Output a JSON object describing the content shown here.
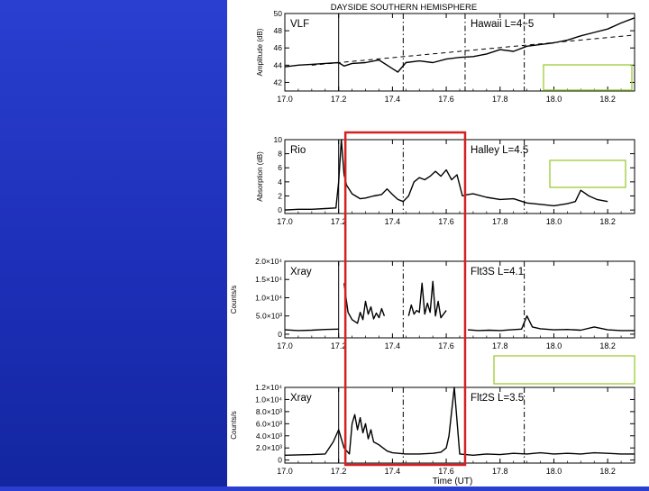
{
  "figure": {
    "title": "DAYSIDE SOUTHERN HEMISPHERE",
    "xaxis_title": "Time (UT)"
  },
  "highlight": {
    "color": "#d42020",
    "x_range": [
      17.225,
      17.67
    ],
    "panels": [
      1,
      3
    ]
  },
  "chart_data": [
    {
      "type": "line",
      "title": "DAYSIDE SOUTHERN HEMISPHERE",
      "left_label": "VLF",
      "right_label": "Hawaii L=4−5",
      "xlabel": "",
      "ylabel": "Amplitude (dB)",
      "xlim": [
        17.0,
        18.3
      ],
      "ylim": [
        41,
        50
      ],
      "xticks": [
        "17.0",
        "17.2",
        "17.4",
        "17.6",
        "17.8",
        "18.0",
        "18.2"
      ],
      "yticks": [
        "42",
        "44",
        "46",
        "48",
        "50"
      ],
      "ytick_values": [
        42,
        44,
        46,
        48,
        50
      ],
      "vlines": [
        17.2,
        17.44,
        17.67,
        17.89
      ],
      "vline_styles": [
        "solid",
        "dashdot",
        "dashdot",
        "dashdot"
      ],
      "reference_line": {
        "x": [
          17.1,
          18.3
        ],
        "y": [
          44.0,
          47.5
        ]
      },
      "x": [
        17.0,
        17.05,
        17.1,
        17.15,
        17.2,
        17.22,
        17.25,
        17.3,
        17.35,
        17.4,
        17.42,
        17.45,
        17.5,
        17.55,
        17.6,
        17.65,
        17.7,
        17.75,
        17.8,
        17.85,
        17.9,
        17.95,
        18.0,
        18.05,
        18.1,
        18.15,
        18.2,
        18.25,
        18.3
      ],
      "series": [
        {
          "values": [
            43.8,
            44.0,
            44.1,
            44.2,
            44.3,
            43.9,
            44.2,
            44.3,
            44.6,
            43.6,
            43.2,
            44.3,
            44.5,
            44.3,
            44.7,
            44.9,
            45.0,
            45.3,
            45.8,
            45.6,
            46.2,
            46.4,
            46.6,
            46.9,
            47.4,
            47.8,
            48.2,
            48.9,
            49.5
          ]
        }
      ]
    },
    {
      "type": "line",
      "left_label": "Rio",
      "right_label": "Halley L=4.5",
      "xlabel": "",
      "ylabel": "Absorption (dB)",
      "xlim": [
        17.0,
        18.3
      ],
      "ylim": [
        -0.5,
        10
      ],
      "xticks": [
        "17.0",
        "17.2",
        "17.4",
        "17.6",
        "17.8",
        "18.0",
        "18.2"
      ],
      "yticks": [
        "0",
        "2",
        "4",
        "6",
        "8",
        "10"
      ],
      "ytick_values": [
        0,
        2,
        4,
        6,
        8,
        10
      ],
      "vlines": [
        17.2,
        17.44,
        17.67,
        17.89
      ],
      "vline_styles": [
        "solid",
        "dashdot",
        "dashdot",
        "dashdot"
      ],
      "x": [
        17.0,
        17.05,
        17.1,
        17.15,
        17.19,
        17.2,
        17.21,
        17.22,
        17.23,
        17.25,
        17.28,
        17.3,
        17.33,
        17.36,
        17.38,
        17.4,
        17.42,
        17.44,
        17.46,
        17.48,
        17.5,
        17.52,
        17.54,
        17.56,
        17.58,
        17.6,
        17.62,
        17.64,
        17.66,
        17.68,
        17.7,
        17.75,
        17.8,
        17.85,
        17.9,
        17.95,
        18.0,
        18.05,
        18.08,
        18.1,
        18.13,
        18.16,
        18.2
      ],
      "series": [
        {
          "values": [
            0.0,
            0.1,
            0.1,
            0.2,
            0.3,
            4.0,
            10.0,
            5.0,
            3.5,
            2.3,
            1.6,
            1.7,
            2.0,
            2.2,
            3.0,
            2.2,
            1.5,
            1.2,
            2.0,
            4.0,
            4.6,
            4.3,
            4.8,
            5.5,
            4.8,
            5.7,
            4.3,
            5.0,
            2.0,
            2.2,
            2.3,
            1.8,
            1.5,
            1.6,
            1.0,
            0.8,
            0.6,
            0.9,
            1.2,
            2.8,
            2.0,
            1.5,
            1.2
          ]
        }
      ]
    },
    {
      "type": "line",
      "left_label": "Xray",
      "right_label": "Flt3S L=4.1",
      "xlabel": "",
      "ylabel": "Counts/s",
      "xlim": [
        17.0,
        18.3
      ],
      "ylim": [
        -1000,
        20000
      ],
      "xticks": [
        "17.0",
        "17.2",
        "17.4",
        "17.6",
        "17.8",
        "18.0",
        "18.2"
      ],
      "yticks": [
        "0",
        "5.0×10³",
        "1.0×10⁴",
        "1.5×10⁴",
        "2.0×10⁴"
      ],
      "ytick_values": [
        0,
        5000,
        10000,
        15000,
        20000
      ],
      "vlines": [
        17.2,
        17.44,
        17.67,
        17.89
      ],
      "vline_styles": [
        "solid",
        "dashdot",
        "dashdot",
        "dashdot"
      ],
      "segments": [
        {
          "x": [
            17.0,
            17.05,
            17.1,
            17.15,
            17.2
          ],
          "y": [
            1200,
            1000,
            1100,
            1300,
            1400
          ]
        },
        {
          "x": [
            17.22,
            17.235,
            17.25,
            17.27,
            17.28,
            17.29,
            17.3,
            17.31,
            17.32,
            17.33,
            17.34,
            17.35,
            17.36,
            17.37
          ],
          "y": [
            14000,
            6000,
            4000,
            3000,
            6000,
            4000,
            9000,
            5500,
            7500,
            4200,
            5800,
            4500,
            7000,
            5000
          ]
        },
        {
          "x": [
            17.46,
            17.47,
            17.48,
            17.49,
            17.5,
            17.51,
            17.52,
            17.53,
            17.54,
            17.55,
            17.56,
            17.57,
            17.58,
            17.6
          ],
          "y": [
            5000,
            8000,
            5500,
            6500,
            6000,
            14000,
            5500,
            8500,
            6000,
            14500,
            5000,
            9000,
            4500,
            6500
          ]
        },
        {
          "x": [
            17.68,
            17.72,
            17.76,
            17.8,
            17.84,
            17.88,
            17.9,
            17.92,
            17.95,
            18.0,
            18.05,
            18.1,
            18.15,
            18.2,
            18.25,
            18.3
          ],
          "y": [
            1200,
            1000,
            1100,
            1000,
            1200,
            1400,
            5000,
            2000,
            1500,
            1200,
            1300,
            1100,
            2000,
            1200,
            1000,
            1000
          ]
        }
      ]
    },
    {
      "type": "line",
      "left_label": "Xray",
      "right_label": "Flt2S L=3.5",
      "xlabel": "Time (UT)",
      "ylabel": "Counts/s",
      "xlim": [
        17.0,
        18.3
      ],
      "ylim": [
        -500,
        12000
      ],
      "xticks": [
        "17.0",
        "17.2",
        "17.4",
        "17.6",
        "17.8",
        "18.0",
        "18.2"
      ],
      "yticks": [
        "0",
        "2.0×10³",
        "4.0×10³",
        "6.0×10³",
        "8.0×10³",
        "1.0×10⁴",
        "1.2×10⁴"
      ],
      "ytick_values": [
        0,
        2000,
        4000,
        6000,
        8000,
        10000,
        12000
      ],
      "vlines": [
        17.2,
        17.44,
        17.67,
        17.89
      ],
      "vline_styles": [
        "solid",
        "dashdot",
        "dashdot",
        "dashdot"
      ],
      "x": [
        17.0,
        17.1,
        17.15,
        17.18,
        17.2,
        17.22,
        17.24,
        17.25,
        17.26,
        17.27,
        17.28,
        17.29,
        17.3,
        17.31,
        17.32,
        17.33,
        17.35,
        17.38,
        17.4,
        17.45,
        17.5,
        17.55,
        17.58,
        17.6,
        17.61,
        17.62,
        17.63,
        17.65,
        17.7,
        17.75,
        17.8,
        17.85,
        17.9,
        17.95,
        18.0,
        18.05,
        18.1,
        18.15,
        18.2,
        18.25,
        18.3
      ],
      "series": [
        {
          "values": [
            800,
            900,
            1000,
            3000,
            5000,
            2000,
            1000,
            6000,
            7500,
            5000,
            7000,
            4500,
            6000,
            3500,
            5000,
            3000,
            2500,
            1500,
            1200,
            1000,
            1000,
            1100,
            1300,
            2000,
            4000,
            8000,
            12000,
            1000,
            800,
            1000,
            900,
            1100,
            1000,
            1200,
            1000,
            1100,
            1000,
            1200,
            1100,
            1000,
            1000
          ]
        }
      ]
    }
  ]
}
